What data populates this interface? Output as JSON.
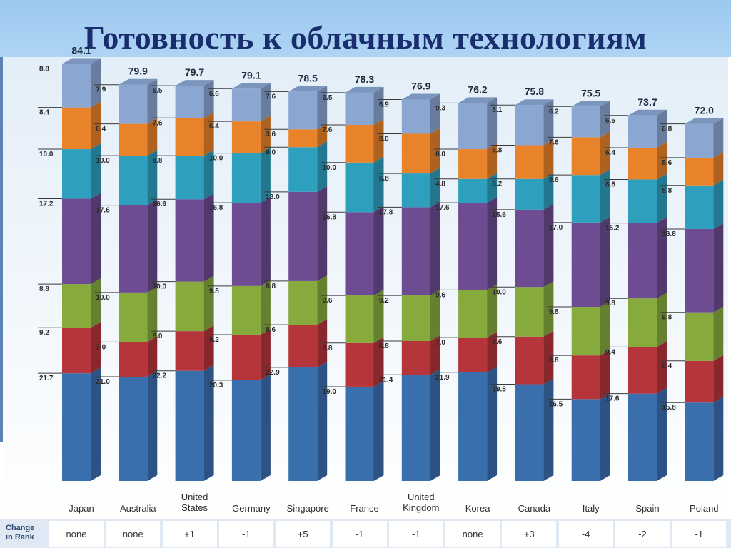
{
  "title": "Готовность к облачным технологиям",
  "rank_header": [
    "Change",
    "in Rank"
  ],
  "colors": {
    "layers": [
      "#3a6fae",
      "#b5353a",
      "#87aa3d",
      "#6d4c91",
      "#2ea0be",
      "#e9832a",
      "#8aa6d1"
    ]
  },
  "chart_data": {
    "type": "bar",
    "stacked": true,
    "categories": [
      "Japan",
      "Australia",
      "United States",
      "Germany",
      "Singapore",
      "France",
      "United Kingdom",
      "Korea",
      "Canada",
      "Italy",
      "Spain",
      "Poland"
    ],
    "category_lines": [
      [
        "Japan"
      ],
      [
        "Australia"
      ],
      [
        "United",
        "States"
      ],
      [
        "Germany"
      ],
      [
        "Singapore"
      ],
      [
        "France"
      ],
      [
        "United",
        "Kingdom"
      ],
      [
        "Korea"
      ],
      [
        "Canada"
      ],
      [
        "Italy"
      ],
      [
        "Spain"
      ],
      [
        "Poland"
      ]
    ],
    "totals": [
      "84.1",
      "79.9",
      "79.7",
      "79.1",
      "78.5",
      "78.3",
      "76.9",
      "76.2",
      "75.8",
      "75.5",
      "73.7",
      "72.0"
    ],
    "series": [
      {
        "values": [
          21.7,
          21.0,
          22.2,
          20.3,
          22.9,
          19.0,
          21.4,
          21.9,
          19.5,
          16.5,
          17.6,
          15.8
        ],
        "labels": [
          "21.7",
          "21.0",
          "22.2",
          "20.3",
          "22.9",
          "19.0",
          "21.4",
          "21.9",
          "19.5",
          "16.5",
          "17.6",
          "15.8"
        ]
      },
      {
        "values": [
          9.2,
          7.0,
          8.0,
          9.2,
          8.6,
          8.8,
          6.8,
          7.0,
          9.6,
          8.8,
          9.4,
          8.4
        ],
        "labels": [
          "9.2",
          "7.0",
          "8.0",
          "9.2",
          "8.6",
          "8.8",
          "6.8",
          "7.0",
          "9.6",
          "8.8",
          "9.4",
          "8.4"
        ]
      },
      {
        "values": [
          8.8,
          10.0,
          10.0,
          9.8,
          8.8,
          9.6,
          9.2,
          9.6,
          10.0,
          9.8,
          9.8,
          9.8
        ],
        "labels": [
          "8.8",
          "10.0",
          "10.0",
          "9.8",
          "8.8",
          "9.6",
          "9.2",
          "9.6",
          "10.0",
          "9.8",
          "9.8",
          "9.8"
        ]
      },
      {
        "values": [
          17.2,
          17.6,
          16.6,
          16.8,
          18.0,
          16.8,
          17.8,
          17.6,
          15.6,
          17.0,
          15.2,
          16.8
        ],
        "labels": [
          "17.2",
          "17.6",
          "16.6",
          "16.8",
          "18.0",
          "16.8",
          "17.8",
          "17.6",
          "15.6",
          "17.0",
          "15.2",
          "16.8"
        ]
      },
      {
        "values": [
          10.0,
          10.0,
          8.8,
          10.0,
          9.0,
          10.0,
          6.8,
          4.8,
          6.2,
          9.6,
          8.8,
          8.8
        ],
        "labels": [
          "10.0",
          "10.0",
          "8.8",
          "10.0",
          "9.0",
          "10.0",
          "6.8",
          "4.8",
          "6.2",
          "9.6",
          "8.8",
          "8.8"
        ]
      },
      {
        "values": [
          8.4,
          6.4,
          7.6,
          6.4,
          3.6,
          7.6,
          8.0,
          6.0,
          6.8,
          7.6,
          6.4,
          5.6
        ],
        "labels": [
          "8.4",
          "6.4",
          "7.6",
          "6.4",
          "3.6",
          "7.6",
          "8.0",
          "6.0",
          "6.8",
          "7.6",
          "6.4",
          "5.6"
        ]
      },
      {
        "values": [
          8.8,
          7.9,
          6.5,
          6.6,
          7.6,
          6.5,
          6.9,
          9.3,
          8.1,
          6.2,
          6.5,
          6.8
        ],
        "labels": [
          "8.8",
          "7.9",
          "6.5",
          "6.6",
          "7.6",
          "6.5",
          "6.9",
          "9.3",
          "8.1",
          "6.2",
          "6.5",
          "6.8"
        ]
      }
    ],
    "change_in_rank": [
      "none",
      "none",
      "+1",
      "-1",
      "+5",
      "-1",
      "-1",
      "none",
      "+3",
      "-4",
      "-2",
      "-1"
    ]
  }
}
